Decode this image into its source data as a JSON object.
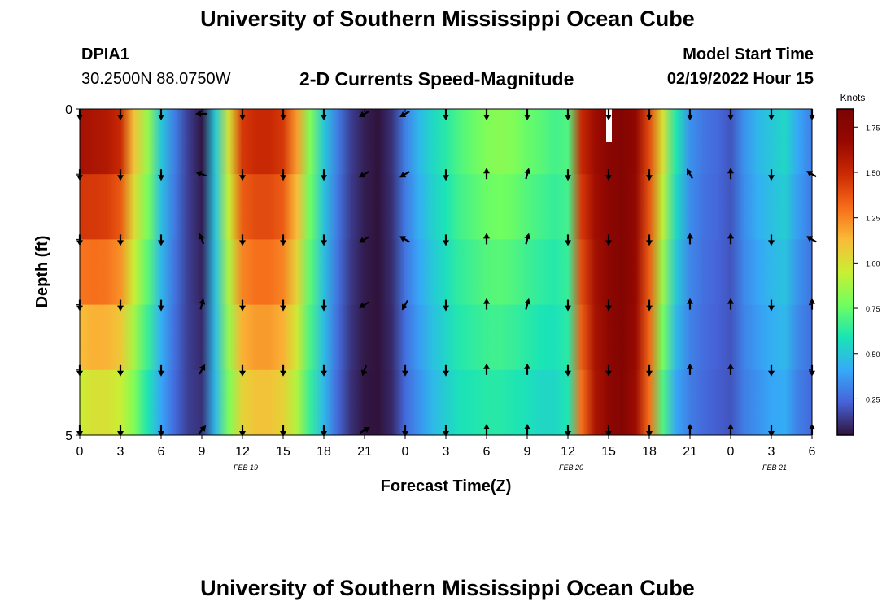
{
  "page": {
    "title": "University of Southern Mississippi Ocean Cube",
    "title_repeat": "University of Southern Mississippi Ocean Cube",
    "station_id": "DPIA1",
    "coordinates": "30.2500N  88.0750W",
    "plot_title": "2-D Currents Speed-Magnitude",
    "model_start_label": "Model Start Time",
    "model_start_value": "02/19/2022 Hour 15"
  },
  "chart_data": {
    "type": "heatmap",
    "title": "2-D Currents Speed-Magnitude",
    "xlabel": "Forecast Time(Z)",
    "ylabel": "Depth (ft)",
    "xlim": [
      0,
      54
    ],
    "ylim": [
      0,
      5
    ],
    "y_axis_inverted": true,
    "x_ticks": [
      0,
      3,
      6,
      9,
      12,
      15,
      18,
      21,
      24,
      27,
      30,
      33,
      36,
      39,
      42,
      45,
      48,
      51,
      54
    ],
    "x_tick_labels": [
      "0",
      "3",
      "6",
      "9",
      "12",
      "15",
      "18",
      "21",
      "0",
      "3",
      "6",
      "9",
      "12",
      "15",
      "18",
      "21",
      "0",
      "3",
      "6"
    ],
    "y_ticks": [
      0,
      5
    ],
    "y_tick_labels": [
      "0",
      "5"
    ],
    "date_labels": [
      {
        "label": "FEB 19",
        "hour": 12
      },
      {
        "label": "FEB 20",
        "hour": 36
      },
      {
        "label": "FEB 21",
        "hour": 51
      }
    ],
    "colorbar": {
      "label": "Knots",
      "min": 0.05,
      "max": 1.85,
      "ticks": [
        0.25,
        0.5,
        0.75,
        1.0,
        1.25,
        1.5,
        1.75
      ],
      "tick_labels": [
        "0.25",
        "0.50",
        "0.75",
        "1.00",
        "1.25",
        "1.50",
        "1.75"
      ]
    },
    "depth_levels": [
      0,
      1,
      2,
      3,
      4,
      5
    ],
    "hours": [
      0,
      1,
      2,
      3,
      4,
      5,
      6,
      7,
      8,
      9,
      10,
      11,
      12,
      13,
      14,
      15,
      16,
      17,
      18,
      19,
      20,
      21,
      22,
      23,
      24,
      25,
      26,
      27,
      28,
      29,
      30,
      31,
      32,
      33,
      34,
      35,
      36,
      37,
      38,
      39,
      40,
      41,
      42,
      43,
      44,
      45,
      46,
      47,
      48,
      49,
      50,
      51,
      52,
      53,
      54
    ],
    "speed_surface": [
      1.62,
      1.6,
      1.58,
      1.5,
      1.1,
      0.85,
      0.5,
      0.3,
      0.15,
      0.06,
      0.5,
      1.0,
      1.45,
      1.5,
      1.5,
      1.45,
      1.2,
      0.8,
      0.5,
      0.3,
      0.15,
      0.08,
      0.05,
      0.12,
      0.3,
      0.45,
      0.55,
      0.62,
      0.7,
      0.75,
      0.8,
      0.82,
      0.8,
      0.75,
      0.72,
      0.68,
      0.7,
      1.5,
      1.65,
      1.75,
      1.8,
      1.7,
      1.4,
      1.0,
      0.6,
      0.35,
      0.28,
      0.25,
      0.2,
      0.35,
      0.45,
      0.5,
      0.55,
      0.4,
      0.3
    ],
    "speed_bottom": [
      0.95,
      1.0,
      1.0,
      0.95,
      0.8,
      0.6,
      0.4,
      0.25,
      0.15,
      0.12,
      0.45,
      0.8,
      1.05,
      1.1,
      1.1,
      1.05,
      0.9,
      0.65,
      0.45,
      0.25,
      0.12,
      0.06,
      0.05,
      0.1,
      0.25,
      0.35,
      0.45,
      0.52,
      0.58,
      0.6,
      0.62,
      0.62,
      0.6,
      0.58,
      0.55,
      0.55,
      0.6,
      1.3,
      1.6,
      1.72,
      1.8,
      1.65,
      1.3,
      0.7,
      0.4,
      0.3,
      0.25,
      0.22,
      0.2,
      0.3,
      0.35,
      0.4,
      0.42,
      0.3,
      0.25
    ],
    "missing_cells": [
      {
        "hour": 39,
        "depth_start": 0,
        "depth_end": 0.5
      }
    ],
    "vector_hours": [
      0,
      3,
      6,
      9,
      12,
      15,
      18,
      21,
      24,
      27,
      30,
      33,
      36,
      39,
      42,
      45,
      48,
      51,
      54
    ],
    "vector_depths": [
      0,
      1,
      2,
      3,
      4,
      5
    ],
    "vector_directions_deg": [
      [
        180,
        180,
        180,
        180,
        180,
        180
      ],
      [
        180,
        180,
        180,
        180,
        180,
        180
      ],
      [
        180,
        180,
        180,
        180,
        180,
        180
      ],
      [
        270,
        290,
        340,
        15,
        30,
        40
      ],
      [
        180,
        180,
        180,
        180,
        180,
        180
      ],
      [
        180,
        180,
        180,
        180,
        180,
        180
      ],
      [
        180,
        180,
        180,
        180,
        180,
        180
      ],
      [
        240,
        240,
        240,
        240,
        200,
        60
      ],
      [
        240,
        240,
        300,
        210,
        180,
        180
      ],
      [
        180,
        180,
        180,
        180,
        180,
        180
      ],
      [
        180,
        0,
        0,
        0,
        0,
        0
      ],
      [
        180,
        15,
        15,
        15,
        0,
        0
      ],
      [
        180,
        180,
        180,
        180,
        180,
        180
      ],
      [
        180,
        180,
        180,
        180,
        180,
        180
      ],
      [
        180,
        180,
        180,
        180,
        180,
        180
      ],
      [
        180,
        330,
        0,
        0,
        0,
        0
      ],
      [
        180,
        0,
        0,
        0,
        0,
        0
      ],
      [
        180,
        180,
        180,
        180,
        180,
        180
      ],
      [
        180,
        300,
        300,
        0,
        180,
        0
      ]
    ]
  }
}
